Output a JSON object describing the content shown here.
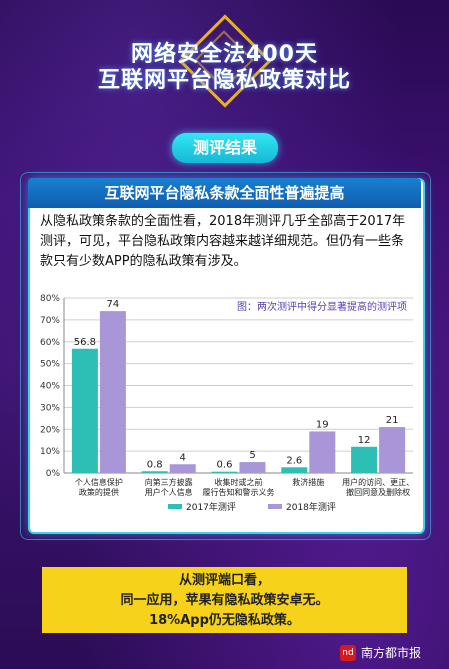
{
  "header": {
    "title_line1": "网络安全法400天",
    "title_line2": "互联网平台隐私政策对比"
  },
  "tab": {
    "label": "测评结果"
  },
  "panel": {
    "subtitle": "互联网平台隐私条款全面性普遍提高",
    "paragraph": "从隐私政策条款的全面性看，2018年测评几乎全部高于2017年测评，可见，平台隐私政策内容越来越详细规范。但仍有一些条款只有少数APP的隐私政策有涉及。"
  },
  "conclusion": {
    "line1": "从测评端口看，",
    "line2": "同一应用，苹果有隐私政策安卓无。",
    "line3": "18%App仍无隐私政策。"
  },
  "footer": {
    "source": "南方都市报"
  },
  "colors": {
    "s2017": "#2dbfb6",
    "s2018": "#a896d9",
    "accent": "#3fd3ea",
    "yellow": "#f6d21a"
  },
  "chart_data": {
    "type": "bar",
    "annotation": "图：两次测评中得分显著提高的测评项",
    "categories": [
      [
        "个人信息保护",
        "政策的提供"
      ],
      [
        "向第三方披露",
        "用户个人信息"
      ],
      [
        "收集时或之前",
        "履行告知和警示义务"
      ],
      [
        "救济措施"
      ],
      [
        "用户的访问、更正、",
        "撤回同意及删除权"
      ]
    ],
    "series": [
      {
        "name": "2017年测评",
        "values": [
          56.8,
          0.8,
          0.6,
          2.6,
          12
        ],
        "labels": [
          "56.8",
          "0.8",
          "0.6",
          "2.6",
          "12"
        ]
      },
      {
        "name": "2018年测评",
        "values": [
          74,
          4,
          5,
          19,
          21
        ],
        "labels": [
          "74",
          "4",
          "5",
          "19",
          "21"
        ]
      }
    ],
    "yticks": [
      "0%",
      "10%",
      "20%",
      "30%",
      "40%",
      "50%",
      "60%",
      "70%",
      "80%"
    ],
    "ylim": [
      0,
      80
    ],
    "legend": "bottom"
  }
}
